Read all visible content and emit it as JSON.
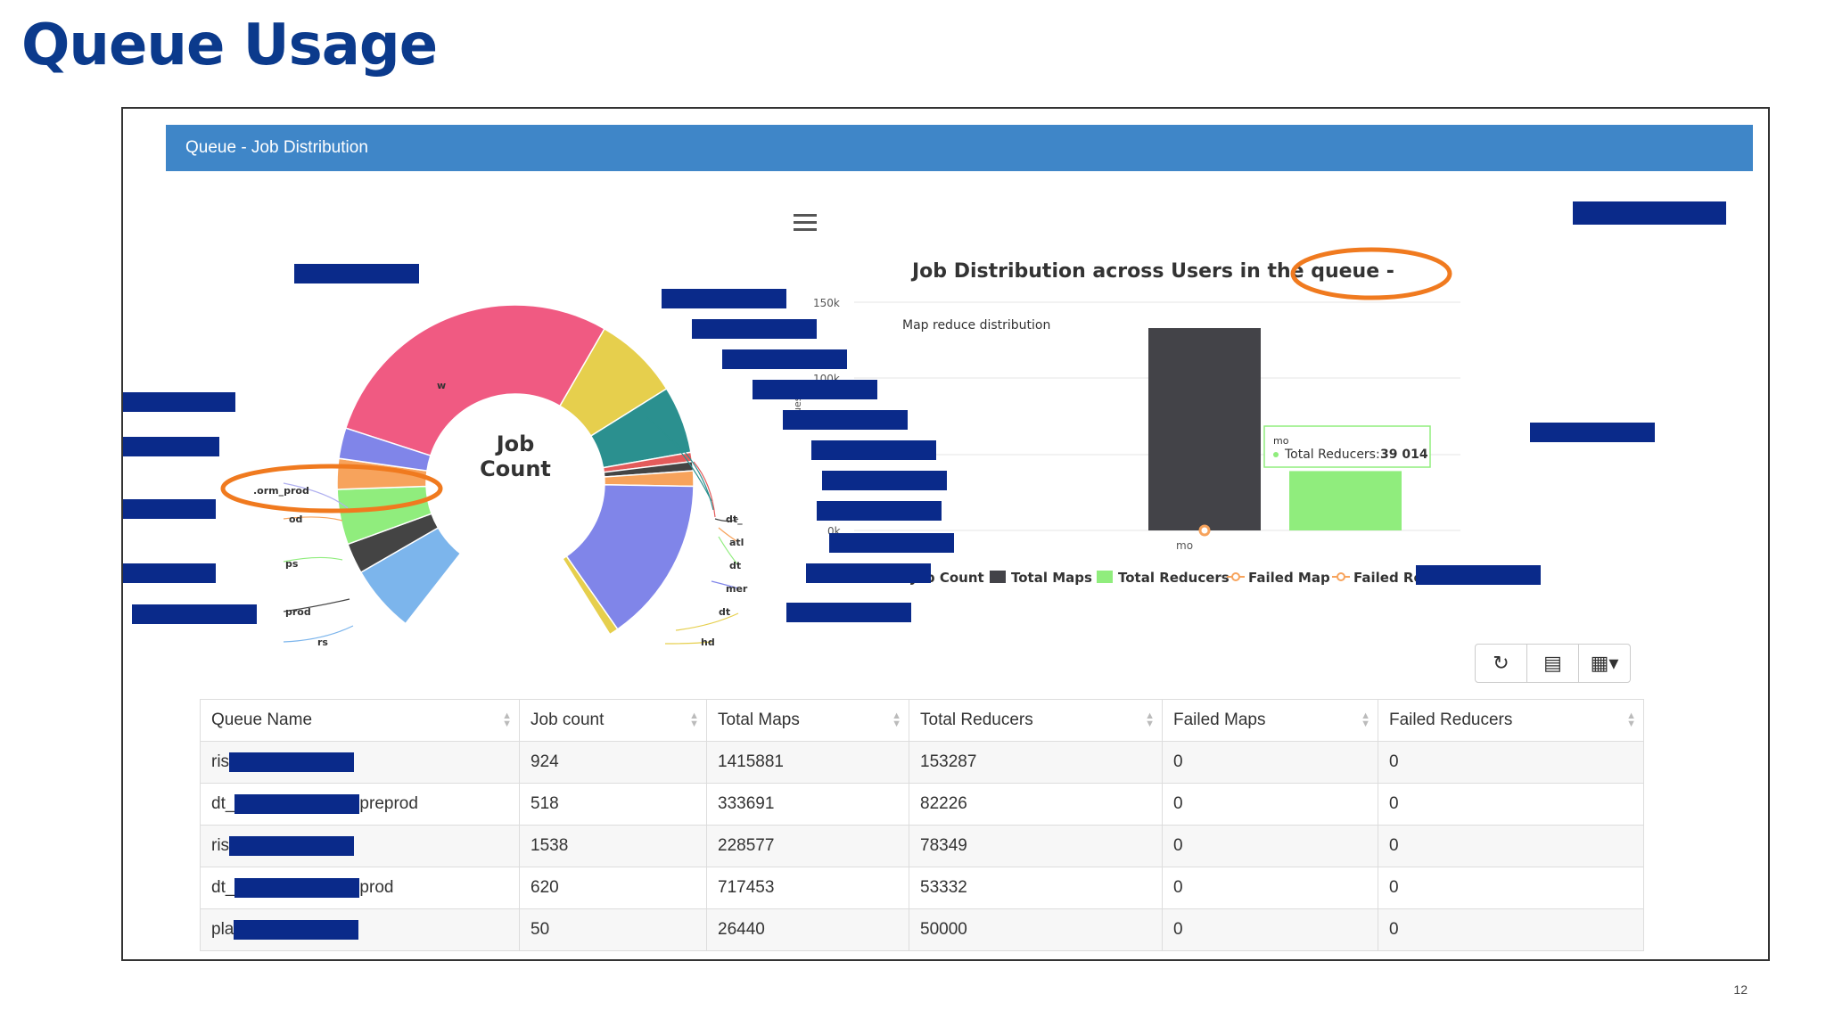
{
  "slide": {
    "title": "Queue Usage",
    "page_number": "12"
  },
  "panel": {
    "header": "Queue - Job Distribution"
  },
  "donut": {
    "center_line1": "Job",
    "center_line2": "Count",
    "label_fragments": [
      "w",
      ".orm_prod",
      "od",
      "ps",
      "prod",
      "rs",
      "dt_",
      "atl",
      "dt",
      "mer",
      "dt",
      "hd"
    ],
    "colors": [
      "#f05a82",
      "#e6cf4d",
      "#2b908f",
      "#e35b5b",
      "#444444",
      "#f7a35c",
      "#8085e9",
      "#7cb5ec",
      "#90ed7d"
    ]
  },
  "bar_chart": {
    "title": "Job Distribution across Users in the queue - ",
    "subtitle": "Map reduce distribution",
    "y_ticks": [
      "150k",
      "100k",
      "k",
      "0k"
    ],
    "y_axis_fragment": "ues",
    "x_label_fragment": "mo",
    "tooltip_line1_fragment": "mo",
    "tooltip_label": "Total Reducers:",
    "tooltip_value": "39 014",
    "legend": [
      "Job Count",
      "Total Maps",
      "Total Reducers",
      "Failed Map",
      "Failed Reducers"
    ],
    "colors": {
      "job_count": "#7cb5ec",
      "total_maps": "#434348",
      "total_reducers": "#90ed7d",
      "failed": "#f7a35c",
      "highlight": "#f07a1f"
    }
  },
  "chart_data": {
    "type": "bar",
    "categories": [
      "mo"
    ],
    "series": [
      {
        "name": "Total Maps",
        "values": [
          133000
        ]
      },
      {
        "name": "Total Reducers",
        "values": [
          39014
        ]
      },
      {
        "name": "Failed Map",
        "values": [
          0
        ]
      }
    ],
    "title": "Job Distribution across Users in the queue - ",
    "subtitle": "Map reduce distribution",
    "ylim": [
      0,
      150000
    ],
    "legend_position": "bottom"
  },
  "table": {
    "headers": [
      "Queue Name",
      "Job count",
      "Total Maps",
      "Total Reducers",
      "Failed Maps",
      "Failed Reducers"
    ],
    "rows": [
      {
        "name_pre": "ris",
        "name_post": "",
        "job_count": "924",
        "total_maps": "1415881",
        "total_reducers": "153287",
        "failed_maps": "0",
        "failed_reducers": "0"
      },
      {
        "name_pre": "dt_",
        "name_post": "preprod",
        "job_count": "518",
        "total_maps": "333691",
        "total_reducers": "82226",
        "failed_maps": "0",
        "failed_reducers": "0"
      },
      {
        "name_pre": "ris",
        "name_post": "",
        "job_count": "1538",
        "total_maps": "228577",
        "total_reducers": "78349",
        "failed_maps": "0",
        "failed_reducers": "0"
      },
      {
        "name_pre": "dt_",
        "name_post": "prod",
        "job_count": "620",
        "total_maps": "717453",
        "total_reducers": "53332",
        "failed_maps": "0",
        "failed_reducers": "0"
      },
      {
        "name_pre": "pla",
        "name_post": "",
        "job_count": "50",
        "total_maps": "26440",
        "total_reducers": "50000",
        "failed_maps": "0",
        "failed_reducers": "0"
      }
    ]
  },
  "toolbar": {
    "refresh_icon": "↻",
    "toggle_icon": "▤",
    "columns_icon": "▦▾"
  }
}
